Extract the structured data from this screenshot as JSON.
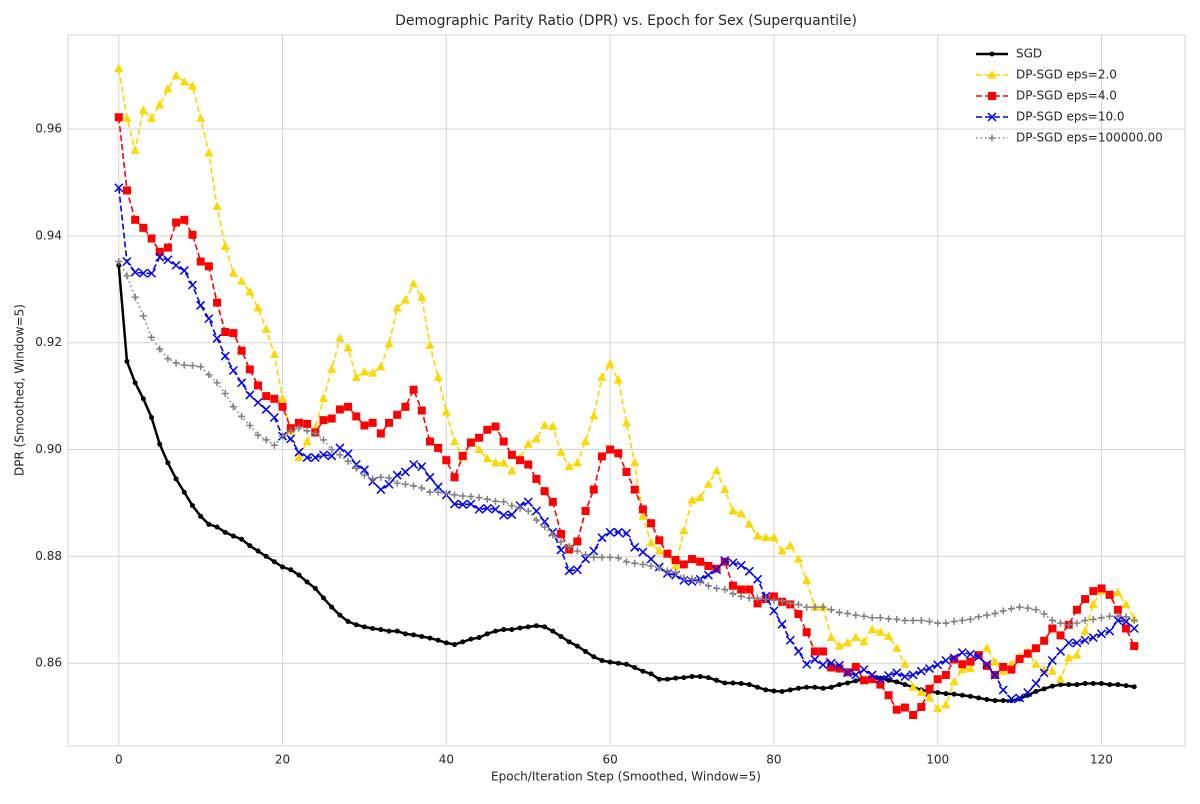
{
  "chart_data": {
    "type": "line",
    "title": "Demographic Parity Ratio (DPR) vs. Epoch for Sex (Superquantile)",
    "xlabel": "Epoch/Iteration Step (Smoothed, Window=5)",
    "ylabel": "DPR (Smoothed, Window=5)",
    "xlim": [
      -6.2,
      130.2
    ],
    "ylim": [
      0.8445,
      0.9776
    ],
    "xticks": [
      0,
      20,
      40,
      60,
      80,
      100,
      120
    ],
    "yticks": [
      0.86,
      0.88,
      {
        "value": 0.9,
        "label": "0.90"
      },
      0.92,
      0.94,
      0.96
    ],
    "grid": true,
    "legend": "upper right",
    "x": [
      0,
      1,
      2,
      3,
      4,
      5,
      6,
      7,
      8,
      9,
      10,
      11,
      12,
      13,
      14,
      15,
      16,
      17,
      18,
      19,
      20,
      21,
      22,
      23,
      24,
      25,
      26,
      27,
      28,
      29,
      30,
      31,
      32,
      33,
      34,
      35,
      36,
      37,
      38,
      39,
      40,
      41,
      42,
      43,
      44,
      45,
      46,
      47,
      48,
      49,
      50,
      51,
      52,
      53,
      54,
      55,
      56,
      57,
      58,
      59,
      60,
      61,
      62,
      63,
      64,
      65,
      66,
      67,
      68,
      69,
      70,
      71,
      72,
      73,
      74,
      75,
      76,
      77,
      78,
      79,
      80,
      81,
      82,
      83,
      84,
      85,
      86,
      87,
      88,
      89,
      90,
      91,
      92,
      93,
      94,
      95,
      96,
      97,
      98,
      99,
      100,
      101,
      102,
      103,
      104,
      105,
      106,
      107,
      108,
      109,
      110,
      111,
      112,
      113,
      114,
      115,
      116,
      117,
      118,
      119,
      120,
      121,
      122,
      123,
      124
    ],
    "series": [
      {
        "name": "SGD",
        "color": "#000000",
        "linestyle": "solid",
        "marker": "circle",
        "values": [
          0.9345,
          0.9165,
          0.9125,
          0.9095,
          0.906,
          0.901,
          0.8975,
          0.8945,
          0.892,
          0.8895,
          0.8875,
          0.886,
          0.8855,
          0.8845,
          0.8838,
          0.8832,
          0.882,
          0.881,
          0.88,
          0.879,
          0.878,
          0.8775,
          0.8765,
          0.8752,
          0.874,
          0.8722,
          0.8705,
          0.869,
          0.8678,
          0.8672,
          0.8668,
          0.8665,
          0.8663,
          0.866,
          0.866,
          0.8655,
          0.8653,
          0.865,
          0.8647,
          0.8643,
          0.8638,
          0.8635,
          0.864,
          0.8645,
          0.8648,
          0.8655,
          0.866,
          0.8663,
          0.8663,
          0.8666,
          0.8668,
          0.867,
          0.8668,
          0.866,
          0.865,
          0.864,
          0.8632,
          0.8622,
          0.8612,
          0.8605,
          0.8602,
          0.86,
          0.8598,
          0.8592,
          0.8585,
          0.858,
          0.857,
          0.857,
          0.8572,
          0.8573,
          0.8575,
          0.8575,
          0.8573,
          0.8568,
          0.8563,
          0.8563,
          0.8562,
          0.856,
          0.8555,
          0.855,
          0.8548,
          0.8547,
          0.855,
          0.8553,
          0.8555,
          0.8555,
          0.8553,
          0.8555,
          0.856,
          0.8563,
          0.8567,
          0.857,
          0.857,
          0.8572,
          0.8568,
          0.8565,
          0.856,
          0.8555,
          0.855,
          0.8547,
          0.8545,
          0.8543,
          0.8542,
          0.854,
          0.8538,
          0.8535,
          0.8532,
          0.853,
          0.853,
          0.853,
          0.8533,
          0.854,
          0.8547,
          0.8552,
          0.8557,
          0.856,
          0.856,
          0.856,
          0.8562,
          0.8562,
          0.8562,
          0.856,
          0.856,
          0.8558,
          0.8556
        ]
      },
      {
        "name": "DP-SGD eps=2.0",
        "color": "#ffd700",
        "linestyle": "dashed",
        "marker": "triangle",
        "values": [
          0.9713,
          0.962,
          0.956,
          0.9635,
          0.962,
          0.9645,
          0.9675,
          0.97,
          0.9688,
          0.968,
          0.962,
          0.9555,
          0.9455,
          0.938,
          0.933,
          0.9315,
          0.9295,
          0.9265,
          0.9225,
          0.9178,
          0.9095,
          0.9035,
          0.8985,
          0.9015,
          0.904,
          0.9095,
          0.915,
          0.9208,
          0.919,
          0.9135,
          0.9145,
          0.9143,
          0.9155,
          0.9198,
          0.9265,
          0.928,
          0.931,
          0.9285,
          0.9195,
          0.9135,
          0.907,
          0.9015,
          0.8985,
          0.9015,
          0.9,
          0.8983,
          0.8975,
          0.8975,
          0.896,
          0.8985,
          0.901,
          0.902,
          0.9045,
          0.9043,
          0.8995,
          0.8968,
          0.8975,
          0.9015,
          0.9063,
          0.9135,
          0.916,
          0.913,
          0.905,
          0.8975,
          0.8875,
          0.8825,
          0.881,
          0.8805,
          0.8782,
          0.8848,
          0.8905,
          0.891,
          0.8935,
          0.896,
          0.8925,
          0.8885,
          0.888,
          0.886,
          0.8838,
          0.8835,
          0.8835,
          0.881,
          0.882,
          0.8795,
          0.8755,
          0.8705,
          0.8705,
          0.8648,
          0.8632,
          0.8638,
          0.8648,
          0.864,
          0.8663,
          0.8658,
          0.865,
          0.8628,
          0.8598,
          0.8555,
          0.8545,
          0.8535,
          0.8515,
          0.8522,
          0.8565,
          0.8588,
          0.859,
          0.8615,
          0.8628,
          0.8602,
          0.8585,
          0.8598,
          0.8612,
          0.8622,
          0.8598,
          0.8588,
          0.8585,
          0.857,
          0.861,
          0.8615,
          0.866,
          0.871,
          0.8735,
          0.8728,
          0.8732,
          0.871,
          0.8683
        ]
      },
      {
        "name": "DP-SGD eps=4.0",
        "color": "#ff0000",
        "linestyle": "dashed",
        "marker": "square",
        "values": [
          0.9622,
          0.9485,
          0.943,
          0.9415,
          0.9395,
          0.937,
          0.9378,
          0.9425,
          0.943,
          0.9402,
          0.9352,
          0.9343,
          0.9275,
          0.922,
          0.9218,
          0.9185,
          0.915,
          0.912,
          0.91,
          0.9095,
          0.908,
          0.904,
          0.905,
          0.9048,
          0.9032,
          0.9055,
          0.9058,
          0.9075,
          0.908,
          0.9062,
          0.9045,
          0.905,
          0.903,
          0.905,
          0.9065,
          0.908,
          0.9112,
          0.9073,
          0.9015,
          0.9003,
          0.898,
          0.8948,
          0.8988,
          0.9013,
          0.9022,
          0.9037,
          0.9043,
          0.9015,
          0.899,
          0.898,
          0.8972,
          0.8945,
          0.8922,
          0.8902,
          0.8842,
          0.8813,
          0.8828,
          0.8885,
          0.8925,
          0.8987,
          0.9,
          0.8993,
          0.8958,
          0.8925,
          0.8888,
          0.8862,
          0.883,
          0.8805,
          0.8793,
          0.8785,
          0.8795,
          0.879,
          0.8782,
          0.8777,
          0.879,
          0.8745,
          0.8738,
          0.8738,
          0.8712,
          0.872,
          0.8725,
          0.8715,
          0.871,
          0.8692,
          0.8658,
          0.8622,
          0.8622,
          0.8592,
          0.859,
          0.8583,
          0.8593,
          0.8568,
          0.857,
          0.856,
          0.854,
          0.8513,
          0.8517,
          0.8503,
          0.8518,
          0.8552,
          0.857,
          0.8578,
          0.8607,
          0.8598,
          0.8603,
          0.8615,
          0.8595,
          0.8578,
          0.8593,
          0.8588,
          0.8608,
          0.8618,
          0.8628,
          0.8642,
          0.8665,
          0.8652,
          0.8672,
          0.87,
          0.872,
          0.8735,
          0.874,
          0.8728,
          0.87,
          0.8665,
          0.8632
        ]
      },
      {
        "name": "DP-SGD eps=10.0",
        "color": "#0000ff",
        "linestyle": "dashed",
        "marker": "x",
        "values": [
          0.949,
          0.9352,
          0.9332,
          0.933,
          0.933,
          0.936,
          0.9355,
          0.9345,
          0.9335,
          0.9308,
          0.927,
          0.9245,
          0.9208,
          0.9175,
          0.9148,
          0.9125,
          0.9102,
          0.9088,
          0.9075,
          0.906,
          0.9025,
          0.902,
          0.8995,
          0.8985,
          0.8985,
          0.899,
          0.8988,
          0.9003,
          0.8992,
          0.8972,
          0.8962,
          0.894,
          0.8925,
          0.8935,
          0.8952,
          0.8958,
          0.8972,
          0.8968,
          0.8948,
          0.893,
          0.8915,
          0.8898,
          0.8897,
          0.8898,
          0.8888,
          0.889,
          0.8888,
          0.8877,
          0.8878,
          0.8895,
          0.8902,
          0.8885,
          0.8865,
          0.8845,
          0.8812,
          0.8773,
          0.8775,
          0.8795,
          0.881,
          0.8835,
          0.8845,
          0.8845,
          0.8843,
          0.8817,
          0.8808,
          0.8795,
          0.878,
          0.8768,
          0.8765,
          0.8755,
          0.8753,
          0.8757,
          0.8765,
          0.8775,
          0.8792,
          0.8788,
          0.8783,
          0.8772,
          0.8757,
          0.8725,
          0.8698,
          0.8673,
          0.8643,
          0.8622,
          0.8598,
          0.8607,
          0.8597,
          0.86,
          0.8596,
          0.8582,
          0.8578,
          0.8588,
          0.8578,
          0.857,
          0.8577,
          0.8582,
          0.8575,
          0.8578,
          0.8585,
          0.859,
          0.8597,
          0.8605,
          0.861,
          0.862,
          0.8617,
          0.8612,
          0.8598,
          0.8578,
          0.855,
          0.8533,
          0.8535,
          0.8545,
          0.8562,
          0.8582,
          0.8605,
          0.8622,
          0.8638,
          0.8638,
          0.8643,
          0.8648,
          0.8655,
          0.866,
          0.868,
          0.8678,
          0.8665
        ]
      },
      {
        "name": "DP-SGD eps=100000.00",
        "color": "#808080",
        "linestyle": "dotted",
        "marker": "plus",
        "values": [
          0.9352,
          0.9325,
          0.9285,
          0.925,
          0.921,
          0.9188,
          0.917,
          0.9162,
          0.9158,
          0.9157,
          0.9155,
          0.914,
          0.9125,
          0.9105,
          0.908,
          0.9062,
          0.9045,
          0.9027,
          0.9018,
          0.9008,
          0.9025,
          0.9035,
          0.904,
          0.9035,
          0.903,
          0.9018,
          0.9,
          0.899,
          0.8978,
          0.8965,
          0.8952,
          0.8945,
          0.8948,
          0.8947,
          0.8937,
          0.8935,
          0.8932,
          0.8928,
          0.892,
          0.892,
          0.8918,
          0.8915,
          0.8913,
          0.8912,
          0.891,
          0.8907,
          0.8903,
          0.8902,
          0.8895,
          0.889,
          0.8885,
          0.8868,
          0.8855,
          0.884,
          0.8827,
          0.8818,
          0.881,
          0.8803,
          0.8798,
          0.8798,
          0.8798,
          0.8797,
          0.879,
          0.8787,
          0.8785,
          0.8782,
          0.8778,
          0.8773,
          0.877,
          0.876,
          0.8758,
          0.8752,
          0.8745,
          0.874,
          0.8738,
          0.873,
          0.8725,
          0.8722,
          0.8722,
          0.872,
          0.8718,
          0.8717,
          0.8712,
          0.871,
          0.8705,
          0.8705,
          0.8705,
          0.87,
          0.8695,
          0.8693,
          0.869,
          0.8688,
          0.8685,
          0.8685,
          0.8683,
          0.8682,
          0.868,
          0.868,
          0.868,
          0.8678,
          0.8675,
          0.8675,
          0.8678,
          0.868,
          0.8682,
          0.8687,
          0.869,
          0.8693,
          0.8698,
          0.8702,
          0.8705,
          0.8703,
          0.87,
          0.8692,
          0.868,
          0.8675,
          0.8672,
          0.8675,
          0.868,
          0.8682,
          0.8685,
          0.8688,
          0.8688,
          0.8687,
          0.868
        ]
      }
    ]
  }
}
